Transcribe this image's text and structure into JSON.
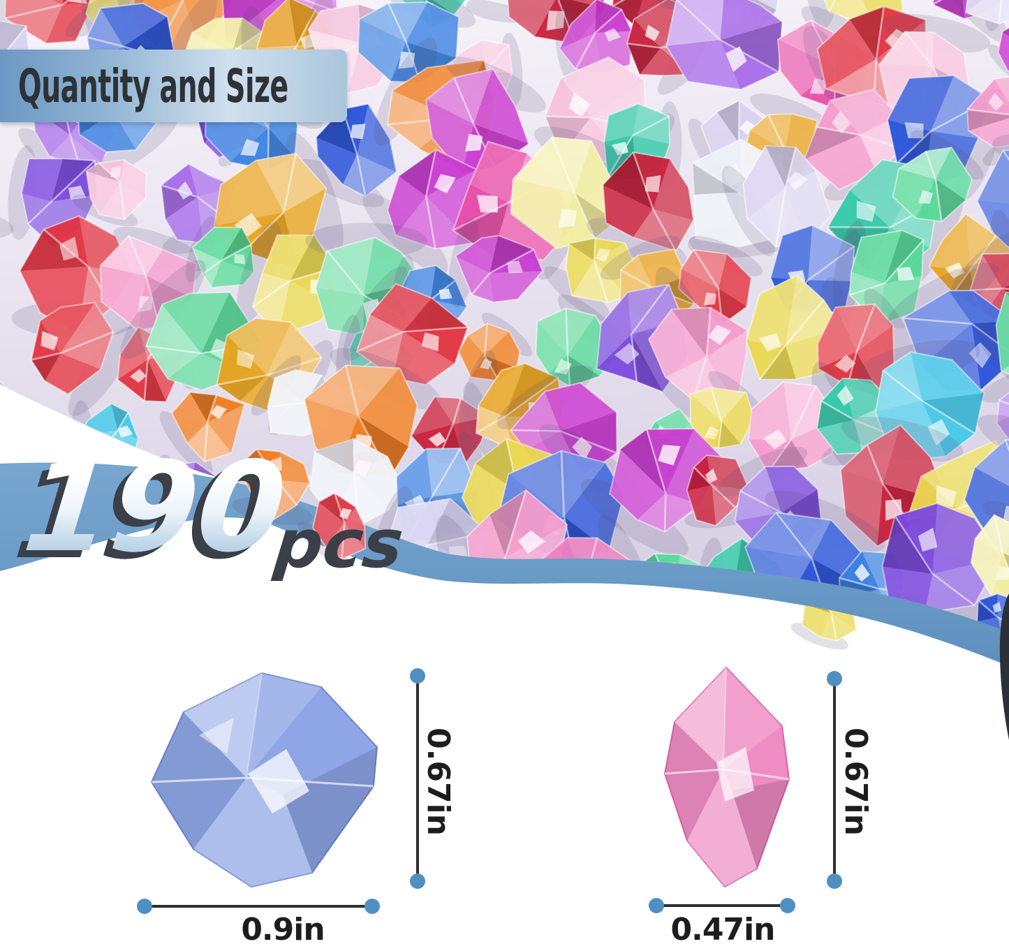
{
  "header": {
    "title": "Quantity and Size"
  },
  "quantity": {
    "number": "190",
    "unit": "pcs"
  },
  "diagrams": {
    "large": {
      "name": "large blue gem",
      "width_label": "0.9in",
      "height_label": "0.67in",
      "gem_color": "#8ea6e6",
      "gem_edge": "#6f85cf"
    },
    "small": {
      "name": "small pink gem",
      "width_label": "0.47in",
      "height_label": "0.67in",
      "gem_color": "#ee8cc3",
      "gem_edge": "#d667a8"
    }
  },
  "colors": {
    "accent_band": "#6b9cc7",
    "banner_left": "#6b98c3",
    "banner_mid": "#cfe0ee",
    "banner_right": "#abc6dc",
    "banner_text": "#2e3236",
    "measure_line": "#2e2e2e",
    "measure_dot": "#4f8fc2",
    "label_text": "#1d1d1d",
    "dark_edge": "#2c3038",
    "surface_top": "#f7f4fa",
    "surface_bottom": "#d7cfe3"
  },
  "photo": {
    "description": "pile of assorted colorful translucent acrylic gem ice rocks on a white table",
    "palette": [
      "#e23340",
      "#c81f3a",
      "#f07a1e",
      "#e8a21c",
      "#ead84e",
      "#f2ee9e",
      "#58d898",
      "#35c8a8",
      "#46c8e8",
      "#3b82e0",
      "#2752d8",
      "#7a48dd",
      "#a66ae8",
      "#c93ad0",
      "#e84fa8",
      "#f49ccb",
      "#f7c2dc",
      "#eef0f8",
      "#d8d2ef"
    ],
    "edge_gems": {
      "orange": "#f07a1e",
      "red": "#e23340",
      "yellow": "#ead84e",
      "royal_blue": "#2752d8"
    }
  }
}
